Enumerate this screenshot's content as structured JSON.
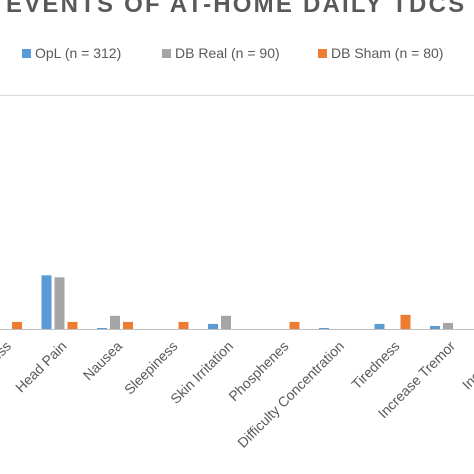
{
  "chart_data": {
    "type": "bar",
    "title": "EVENTS OF AT-HOME DAILY TDCS",
    "xlabel": "",
    "ylabel": "",
    "categories": [
      "Dizziness",
      "Head Pain",
      "Nausea",
      "Sleepiness",
      "Skin Irritation",
      "Phosphenes",
      "Difficulty Concentration",
      "Tiredness",
      "Increase Tremor",
      "Increased"
    ],
    "category_labels": [
      "ess",
      "Head Pain",
      "Nausea",
      "Sleepiness",
      "Skin Irritation",
      "Phosphenes",
      "Difficulty Concentration",
      "Tiredness",
      "Increase Tremor",
      "Increased"
    ],
    "series": [
      {
        "name": "OpL (n = 312)",
        "color": "#5b9bd5",
        "values": [
          0,
          53,
          1,
          0,
          5,
          0,
          1,
          5,
          3,
          0
        ]
      },
      {
        "name": "DB Real (n = 90)",
        "color": "#a5a5a5",
        "values": [
          0,
          51,
          13,
          0,
          13,
          0,
          0,
          0,
          6,
          0
        ]
      },
      {
        "name": "DB Sham (n = 80)",
        "color": "#ed7d31",
        "values": [
          7,
          7,
          7,
          7,
          0,
          7,
          0,
          14,
          0,
          0
        ]
      }
    ],
    "ylim": [
      0,
      230
    ],
    "grid": false,
    "legend_position": "top"
  }
}
